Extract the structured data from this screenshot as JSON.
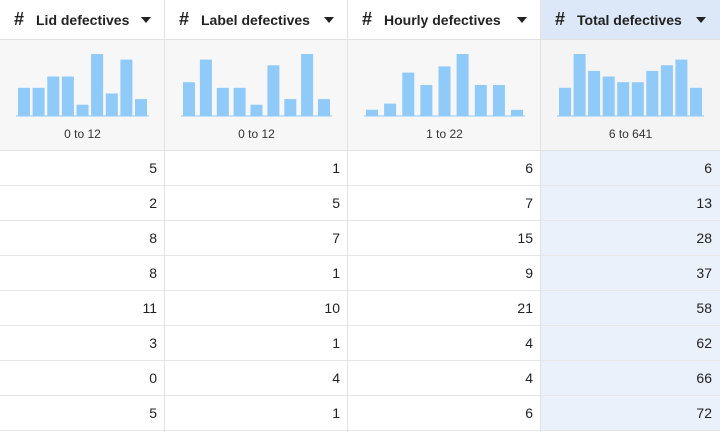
{
  "columns": [
    {
      "name": "Lid defectives",
      "type_icon": "number-hash-icon",
      "range": "0 to 12",
      "histogram": [
        5,
        5,
        7,
        7,
        2,
        11,
        4,
        10,
        3
      ],
      "values": [
        "5",
        "2",
        "8",
        "8",
        "11",
        "3",
        "0",
        "5"
      ]
    },
    {
      "name": "Label defectives",
      "type_icon": "number-hash-icon",
      "range": "0 to 12",
      "histogram": [
        6,
        10,
        5,
        5,
        2,
        9,
        3,
        11,
        3
      ],
      "values": [
        "1",
        "5",
        "7",
        "1",
        "10",
        "1",
        "4",
        "1"
      ]
    },
    {
      "name": "Hourly defectives",
      "type_icon": "number-hash-icon",
      "range": "1 to 22",
      "histogram": [
        1,
        2,
        7,
        5,
        8,
        10,
        5,
        5,
        1
      ],
      "values": [
        "6",
        "7",
        "15",
        "9",
        "21",
        "4",
        "4",
        "6"
      ]
    },
    {
      "name": "Total defectives",
      "type_icon": "number-hash-icon",
      "range": "6 to 641",
      "histogram": [
        5,
        11,
        8,
        7,
        6,
        6,
        8,
        9,
        10,
        5
      ],
      "values": [
        "6",
        "13",
        "28",
        "37",
        "58",
        "62",
        "66",
        "72"
      ],
      "selected": true
    }
  ],
  "colors": {
    "bar": "#90caf9",
    "selected_bg": "#eaf1fb"
  }
}
